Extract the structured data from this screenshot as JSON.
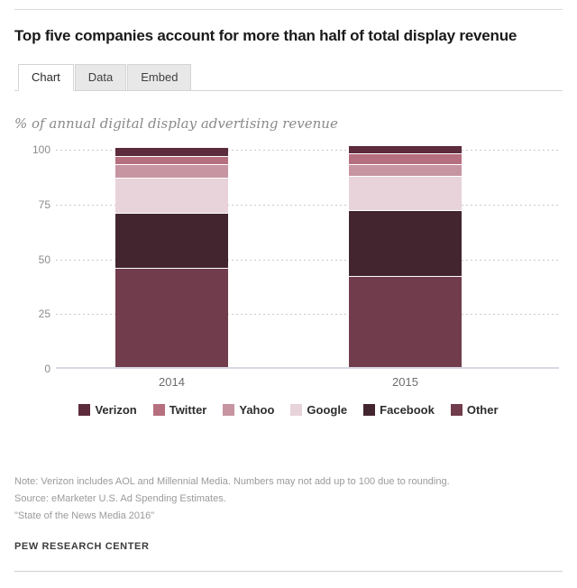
{
  "header": {
    "title": "Top five companies account for more than half of total display revenue"
  },
  "tabs": [
    {
      "label": "Chart",
      "active": true
    },
    {
      "label": "Data",
      "active": false
    },
    {
      "label": "Embed",
      "active": false
    }
  ],
  "subtitle": "% of annual digital display advertising revenue",
  "chart_data": {
    "type": "bar",
    "stacked": true,
    "title": "Top five companies account for more than half of total display revenue",
    "ylabel": "% of annual digital display advertising revenue",
    "categories": [
      "2014",
      "2015"
    ],
    "series": [
      {
        "name": "Verizon",
        "color": "#5c2b3c",
        "values": [
          4,
          4
        ]
      },
      {
        "name": "Twitter",
        "color": "#b66f7e",
        "values": [
          4,
          5
        ]
      },
      {
        "name": "Yahoo",
        "color": "#c795a1",
        "values": [
          6,
          5
        ]
      },
      {
        "name": "Google",
        "color": "#e7d3d9",
        "values": [
          16,
          16
        ]
      },
      {
        "name": "Facebook",
        "color": "#432530",
        "values": [
          25,
          30
        ]
      },
      {
        "name": "Other",
        "color": "#713d4c",
        "values": [
          45,
          41
        ]
      }
    ],
    "stack_order_top_to_bottom": [
      "Verizon",
      "Twitter",
      "Yahoo",
      "Google",
      "Facebook",
      "Other"
    ],
    "yticks": [
      0,
      25,
      50,
      75,
      100
    ],
    "ylim": [
      0,
      100
    ],
    "grid": "dotted horizontal gridlines at 25/50/75/100, solid baseline at 0",
    "legend_position": "bottom"
  },
  "footer": {
    "note": "Note: Verizon includes AOL and Millennial Media. Numbers may not add up to 100 due to rounding.",
    "source": "Source: eMarketer U.S. Ad Spending Estimates.",
    "report": "\"State of the News Media 2016\"",
    "brand": "PEW RESEARCH CENTER"
  }
}
